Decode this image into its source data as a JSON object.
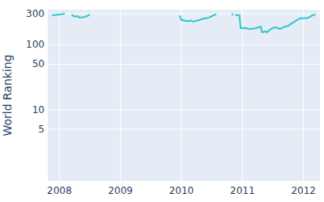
{
  "chart_data": {
    "type": "line",
    "y_label": "World Ranking",
    "x": [
      2007.88,
      2007.95,
      2008.02,
      2008.09,
      2008.15,
      2008.2,
      2008.25,
      2008.3,
      2008.33,
      2008.4,
      2008.45,
      2008.5,
      2008.6,
      2009.97,
      2010.0,
      2010.05,
      2010.1,
      2010.15,
      2010.2,
      2010.25,
      2010.3,
      2010.35,
      2010.4,
      2010.45,
      2010.5,
      2010.57,
      2010.7,
      2010.82,
      2010.85,
      2010.86,
      2010.88,
      2010.95,
      2010.97,
      2011.05,
      2011.1,
      2011.15,
      2011.2,
      2011.27,
      2011.3,
      2011.32,
      2011.37,
      2011.4,
      2011.45,
      2011.5,
      2011.55,
      2011.6,
      2011.65,
      2011.7,
      2011.75,
      2011.8,
      2011.85,
      2011.9,
      2011.95,
      2012.0,
      2012.05,
      2012.1,
      2012.15,
      2012.2
    ],
    "series": [
      {
        "name": "World Ranking",
        "color": "#2ec6cf",
        "values": [
          283,
          288,
          292,
          300,
          null,
          290,
          270,
          275,
          260,
          265,
          275,
          290,
          null,
          280,
          240,
          235,
          230,
          235,
          225,
          235,
          240,
          250,
          255,
          260,
          275,
          295,
          null,
          295,
          290,
          null,
          285,
          285,
          180,
          180,
          175,
          175,
          178,
          185,
          190,
          155,
          160,
          155,
          170,
          180,
          185,
          175,
          180,
          190,
          195,
          210,
          225,
          240,
          255,
          255,
          255,
          265,
          285,
          290
        ]
      }
    ],
    "xlim": [
      2007.81,
      2012.27
    ],
    "xticks": [
      2008,
      2009,
      2010,
      2011,
      2012
    ],
    "ylim": [
      0.8,
      345
    ],
    "yticks": [
      5,
      10,
      50,
      100,
      300
    ],
    "log": "y",
    "grid": true
  }
}
